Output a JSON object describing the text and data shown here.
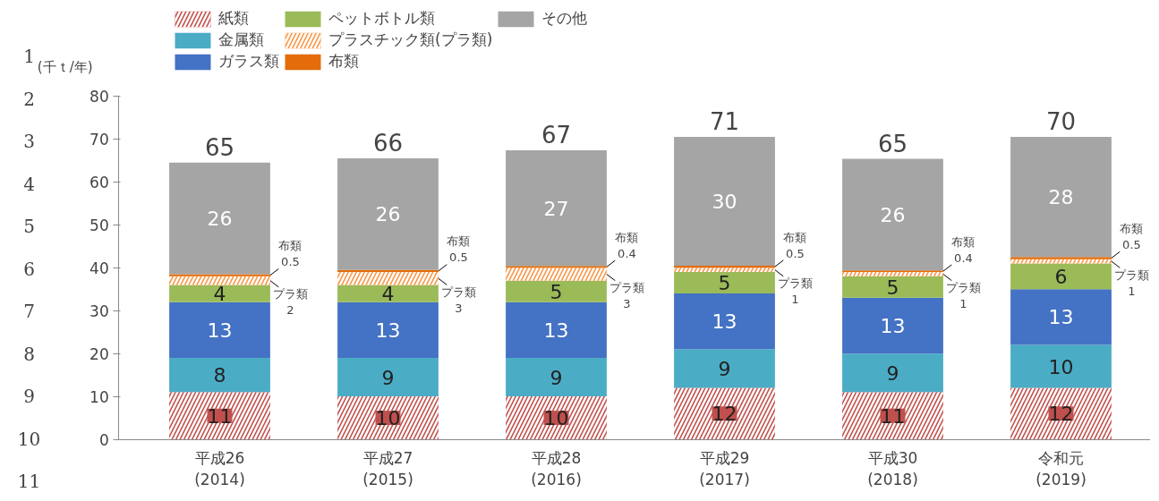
{
  "chart_data": {
    "type": "bar",
    "stacked": true,
    "ylabel": "(千ｔ/年)",
    "categories": [
      "平成26\n(2014)",
      "平成27\n(2015)",
      "平成28\n(2016)",
      "平成29\n(2017)",
      "平成30\n(2018)",
      "令和元\n(2019)"
    ],
    "series": [
      {
        "name": "紙類",
        "color": "#c0504d",
        "values": [
          11,
          10,
          10,
          12,
          11,
          12
        ],
        "value_labels": [
          "11",
          "10",
          "10",
          "12",
          "11",
          "12"
        ]
      },
      {
        "name": "金属類",
        "color": "#4bacc6",
        "values": [
          8,
          9,
          9,
          9,
          9,
          10
        ],
        "value_labels": [
          "8",
          "9",
          "9",
          "9",
          "9",
          "10"
        ]
      },
      {
        "name": "ガラス類",
        "color": "#4472c4",
        "values": [
          13,
          13,
          13,
          13,
          13,
          13
        ],
        "value_labels": [
          "13",
          "13",
          "13",
          "13",
          "13",
          "13"
        ]
      },
      {
        "name": "ペットボトル類",
        "color": "#9bbb59",
        "values": [
          4,
          4,
          5,
          5,
          5,
          6
        ],
        "value_labels": [
          "4",
          "4",
          "5",
          "5",
          "5",
          "6"
        ]
      },
      {
        "name": "プラスチック類(プラ類)",
        "color": "#f79646",
        "values": [
          2,
          3,
          3,
          1,
          1,
          1
        ],
        "value_labels": [
          "プラ類\n2",
          "プラ類\n3",
          "プラ類\n3",
          "プラ類\n1",
          "プラ類\n1",
          "プラ類\n1"
        ]
      },
      {
        "name": "布類",
        "color": "#e46c0a",
        "values": [
          0.5,
          0.5,
          0.4,
          0.5,
          0.4,
          0.5
        ],
        "value_labels": [
          "布類\n0.5",
          "布類\n0.5",
          "布類\n0.4",
          "布類\n0.5",
          "布類\n0.4",
          "布類\n0.5"
        ]
      },
      {
        "name": "その他",
        "color": "#a5a5a5",
        "values": [
          26,
          26,
          27,
          30,
          26,
          28
        ],
        "value_labels": [
          "26",
          "26",
          "27",
          "30",
          "26",
          "28"
        ]
      }
    ],
    "totals": [
      "65",
      "66",
      "67",
      "71",
      "65",
      "70"
    ],
    "ylim": [
      0,
      80
    ],
    "yticks": [
      0,
      10,
      20,
      30,
      40,
      50,
      60,
      70,
      80
    ],
    "grid": false,
    "legend": "top",
    "annotations": [
      "1",
      "2",
      "3",
      "4",
      "5",
      "6",
      "7",
      "8",
      "9",
      "10",
      "11"
    ]
  }
}
